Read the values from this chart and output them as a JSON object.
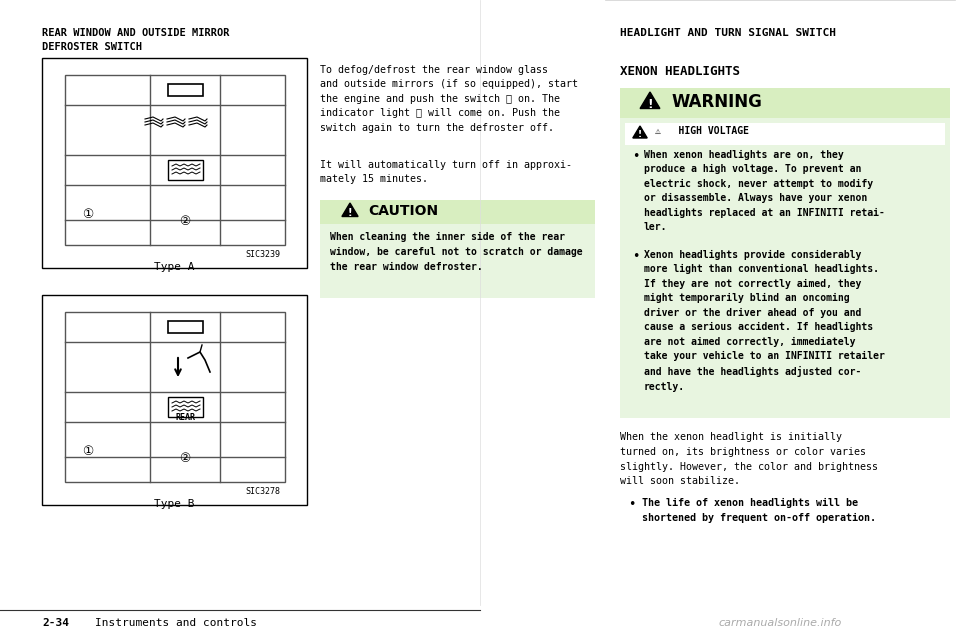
{
  "bg_color": "#ffffff",
  "page_width": 9.6,
  "page_height": 6.31,
  "left_header": "REAR WINDOW AND OUTSIDE MIRROR\nDEFROSTER SWITCH",
  "right_header": "HEADLIGHT AND TURN SIGNAL SWITCH",
  "type_a_label": "Type A",
  "type_b_label": "Type B",
  "sic3239": "SIC3239",
  "sic3278": "SIC3278",
  "middle_text_para1": "To defog/defrost the rear window glass\nand outside mirrors (if so equipped), start\nthe engine and push the switch ① on. The\nindicator light ② will come on. Push the\nswitch again to turn the defroster off.",
  "middle_text_para2": "It will automatically turn off in approxi-\nmately 15 minutes.",
  "caution_title": "⚠  CAUTION",
  "caution_text": "When cleaning the inner side of the rear\nwindow, be careful not to scratch or damage\nthe rear window defroster.",
  "xenon_header": "XENON HEADLIGHTS",
  "warning_title": "⚠  WARNING",
  "high_voltage_label": "⚠   HIGH VOLTAGE",
  "warning_bullet1": "When xenon headlights are on, they\nproduce a high voltage. To prevent an\nelectric shock, never attempt to modify\nor disassemble. Always have your xenon\nheadlights replaced at an INFINITI retai-\nler.",
  "warning_bullet2": "Xenon headlights provide considerably\nmore light than conventional headlights.\nIf they are not correctly aimed, they\nmight temporarily blind an oncoming\ndriver or the driver ahead of you and\ncause a serious accident. If headlights\nare not aimed correctly, immediately\ntake your vehicle to an INFINITI retailer\nand have the headlights adjusted cor-\nrectly.",
  "after_warning_text": "When the xenon headlight is initially\nturned on, its brightness or color varies\nslightly. However, the color and brightness\nwill soon stabilize.",
  "final_bullet": "The life of xenon headlights will be\nshortened by frequent on-off operation.",
  "footer_left": "2-34",
  "footer_right": "Instruments and controls",
  "footer_watermark": "carmanualsonline.info",
  "light_green": "#e8f5e0",
  "warning_green_header": "#c8e6a0",
  "caution_green": "#d8eec0",
  "box_border": "#999999",
  "text_color": "#000000",
  "gray_line": "#888888"
}
